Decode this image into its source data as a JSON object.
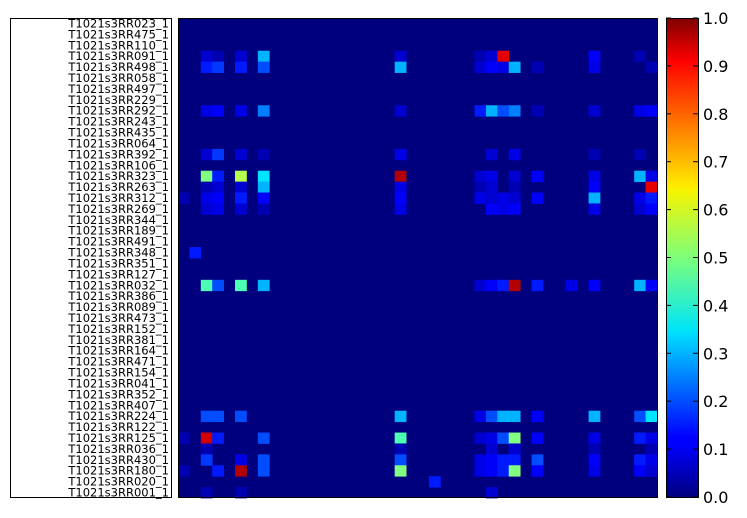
{
  "chart_data": {
    "type": "heatmap",
    "title": "",
    "xlabel": "",
    "ylabel": "",
    "row_labels": [
      "T1021s3RR023_1",
      "T1021s3RR475_1",
      "T1021s3RR110_1",
      "T1021s3RR091_1",
      "T1021s3RR498_1",
      "T1021s3RR058_1",
      "T1021s3RR497_1",
      "T1021s3RR229_1",
      "T1021s3RR292_1",
      "T1021s3RR243_1",
      "T1021s3RR435_1",
      "T1021s3RR064_1",
      "T1021s3RR392_1",
      "T1021s3RR106_1",
      "T1021s3RR323_1",
      "T1021s3RR263_1",
      "T1021s3RR312_1",
      "T1021s3RR269_1",
      "T1021s3RR344_1",
      "T1021s3RR189_1",
      "T1021s3RR491_1",
      "T1021s3RR348_1",
      "T1021s3RR351_1",
      "T1021s3RR127_1",
      "T1021s3RR032_1",
      "T1021s3RR386_1",
      "T1021s3RR089_1",
      "T1021s3RR473_1",
      "T1021s3RR152_1",
      "T1021s3RR381_1",
      "T1021s3RR164_1",
      "T1021s3RR471_1",
      "T1021s3RR154_1",
      "T1021s3RR041_1",
      "T1021s3RR352_1",
      "T1021s3RR407_1",
      "T1021s3RR224_1",
      "T1021s3RR122_1",
      "T1021s3RR125_1",
      "T1021s3RR036_1",
      "T1021s3RR430_1",
      "T1021s3RR180_1",
      "T1021s3RR020_1",
      "T1021s3RR001_1"
    ],
    "n_cols": 42,
    "value_range": [
      0.0,
      1.0
    ],
    "colormap": "jet",
    "background_value": 0.0,
    "cells": [
      [
        3,
        2,
        0.08
      ],
      [
        3,
        3,
        0.05
      ],
      [
        3,
        5,
        0.08
      ],
      [
        3,
        7,
        0.3
      ],
      [
        3,
        19,
        0.08
      ],
      [
        3,
        26,
        0.05
      ],
      [
        3,
        27,
        0.08
      ],
      [
        3,
        28,
        0.9
      ],
      [
        3,
        36,
        0.12
      ],
      [
        3,
        40,
        0.05
      ],
      [
        4,
        2,
        0.15
      ],
      [
        4,
        3,
        0.18
      ],
      [
        4,
        5,
        0.15
      ],
      [
        4,
        7,
        0.2
      ],
      [
        4,
        19,
        0.3
      ],
      [
        4,
        26,
        0.08
      ],
      [
        4,
        27,
        0.12
      ],
      [
        4,
        28,
        0.1
      ],
      [
        4,
        29,
        0.3
      ],
      [
        4,
        31,
        0.05
      ],
      [
        4,
        36,
        0.1
      ],
      [
        4,
        41,
        0.05
      ],
      [
        8,
        2,
        0.1
      ],
      [
        8,
        3,
        0.12
      ],
      [
        8,
        5,
        0.1
      ],
      [
        8,
        7,
        0.25
      ],
      [
        8,
        19,
        0.08
      ],
      [
        8,
        26,
        0.15
      ],
      [
        8,
        27,
        0.3
      ],
      [
        8,
        28,
        0.2
      ],
      [
        8,
        29,
        0.25
      ],
      [
        8,
        31,
        0.05
      ],
      [
        8,
        36,
        0.08
      ],
      [
        8,
        40,
        0.1
      ],
      [
        8,
        41,
        0.12
      ],
      [
        12,
        2,
        0.08
      ],
      [
        12,
        3,
        0.18
      ],
      [
        12,
        5,
        0.08
      ],
      [
        12,
        7,
        0.05
      ],
      [
        12,
        19,
        0.1
      ],
      [
        12,
        27,
        0.08
      ],
      [
        12,
        29,
        0.1
      ],
      [
        12,
        36,
        0.05
      ],
      [
        12,
        40,
        0.05
      ],
      [
        14,
        2,
        0.5
      ],
      [
        14,
        3,
        0.15
      ],
      [
        14,
        5,
        0.55
      ],
      [
        14,
        7,
        0.35
      ],
      [
        14,
        19,
        0.95
      ],
      [
        14,
        26,
        0.08
      ],
      [
        14,
        27,
        0.1
      ],
      [
        14,
        29,
        0.08
      ],
      [
        14,
        31,
        0.12
      ],
      [
        14,
        36,
        0.1
      ],
      [
        14,
        40,
        0.3
      ],
      [
        14,
        41,
        0.1
      ],
      [
        15,
        2,
        0.05
      ],
      [
        15,
        3,
        0.08
      ],
      [
        15,
        5,
        0.08
      ],
      [
        15,
        7,
        0.3
      ],
      [
        15,
        19,
        0.1
      ],
      [
        15,
        26,
        0.05
      ],
      [
        15,
        27,
        0.08
      ],
      [
        15,
        29,
        0.05
      ],
      [
        15,
        36,
        0.12
      ],
      [
        15,
        41,
        0.9
      ],
      [
        16,
        0,
        0.05
      ],
      [
        16,
        2,
        0.1
      ],
      [
        16,
        3,
        0.12
      ],
      [
        16,
        5,
        0.15
      ],
      [
        16,
        7,
        0.12
      ],
      [
        16,
        19,
        0.12
      ],
      [
        16,
        26,
        0.1
      ],
      [
        16,
        27,
        0.08
      ],
      [
        16,
        28,
        0.1
      ],
      [
        16,
        29,
        0.08
      ],
      [
        16,
        31,
        0.12
      ],
      [
        16,
        36,
        0.3
      ],
      [
        16,
        40,
        0.1
      ],
      [
        16,
        41,
        0.15
      ],
      [
        17,
        2,
        0.08
      ],
      [
        17,
        3,
        0.1
      ],
      [
        17,
        5,
        0.08
      ],
      [
        17,
        7,
        0.05
      ],
      [
        17,
        19,
        0.1
      ],
      [
        17,
        27,
        0.12
      ],
      [
        17,
        28,
        0.1
      ],
      [
        17,
        29,
        0.12
      ],
      [
        17,
        36,
        0.1
      ],
      [
        17,
        40,
        0.08
      ],
      [
        17,
        41,
        0.12
      ],
      [
        21,
        1,
        0.15
      ],
      [
        24,
        2,
        0.45
      ],
      [
        24,
        3,
        0.2
      ],
      [
        24,
        5,
        0.45
      ],
      [
        24,
        7,
        0.3
      ],
      [
        24,
        26,
        0.08
      ],
      [
        24,
        27,
        0.12
      ],
      [
        24,
        28,
        0.15
      ],
      [
        24,
        29,
        0.95
      ],
      [
        24,
        31,
        0.15
      ],
      [
        24,
        34,
        0.1
      ],
      [
        24,
        36,
        0.12
      ],
      [
        24,
        40,
        0.3
      ],
      [
        24,
        41,
        0.12
      ],
      [
        36,
        2,
        0.2
      ],
      [
        36,
        3,
        0.2
      ],
      [
        36,
        5,
        0.2
      ],
      [
        36,
        19,
        0.3
      ],
      [
        36,
        26,
        0.1
      ],
      [
        36,
        27,
        0.2
      ],
      [
        36,
        28,
        0.3
      ],
      [
        36,
        29,
        0.3
      ],
      [
        36,
        31,
        0.12
      ],
      [
        36,
        36,
        0.3
      ],
      [
        36,
        40,
        0.2
      ],
      [
        36,
        41,
        0.35
      ],
      [
        38,
        0,
        0.05
      ],
      [
        38,
        2,
        0.92
      ],
      [
        38,
        3,
        0.15
      ],
      [
        38,
        7,
        0.2
      ],
      [
        38,
        19,
        0.45
      ],
      [
        38,
        26,
        0.08
      ],
      [
        38,
        27,
        0.1
      ],
      [
        38,
        28,
        0.2
      ],
      [
        38,
        29,
        0.5
      ],
      [
        38,
        31,
        0.12
      ],
      [
        38,
        36,
        0.1
      ],
      [
        38,
        40,
        0.15
      ],
      [
        38,
        41,
        0.1
      ],
      [
        39,
        2,
        0.05
      ],
      [
        39,
        19,
        0.05
      ],
      [
        39,
        27,
        0.08
      ],
      [
        39,
        29,
        0.08
      ],
      [
        39,
        36,
        0.05
      ],
      [
        39,
        41,
        0.05
      ],
      [
        40,
        2,
        0.18
      ],
      [
        40,
        5,
        0.1
      ],
      [
        40,
        7,
        0.2
      ],
      [
        40,
        19,
        0.2
      ],
      [
        40,
        26,
        0.1
      ],
      [
        40,
        27,
        0.12
      ],
      [
        40,
        28,
        0.15
      ],
      [
        40,
        29,
        0.15
      ],
      [
        40,
        31,
        0.2
      ],
      [
        40,
        36,
        0.12
      ],
      [
        40,
        40,
        0.15
      ],
      [
        40,
        41,
        0.1
      ],
      [
        41,
        0,
        0.05
      ],
      [
        41,
        3,
        0.15
      ],
      [
        41,
        5,
        0.95
      ],
      [
        41,
        7,
        0.2
      ],
      [
        41,
        19,
        0.5
      ],
      [
        41,
        26,
        0.1
      ],
      [
        41,
        27,
        0.12
      ],
      [
        41,
        28,
        0.15
      ],
      [
        41,
        29,
        0.5
      ],
      [
        41,
        31,
        0.12
      ],
      [
        41,
        36,
        0.1
      ],
      [
        41,
        40,
        0.12
      ],
      [
        41,
        41,
        0.08
      ],
      [
        42,
        22,
        0.15
      ],
      [
        43,
        2,
        0.05
      ],
      [
        43,
        5,
        0.05
      ],
      [
        43,
        27,
        0.08
      ]
    ],
    "colorbar_ticks": [
      "0.0",
      "0.1",
      "0.2",
      "0.3",
      "0.4",
      "0.5",
      "0.6",
      "0.7",
      "0.8",
      "0.9",
      "1.0"
    ]
  }
}
